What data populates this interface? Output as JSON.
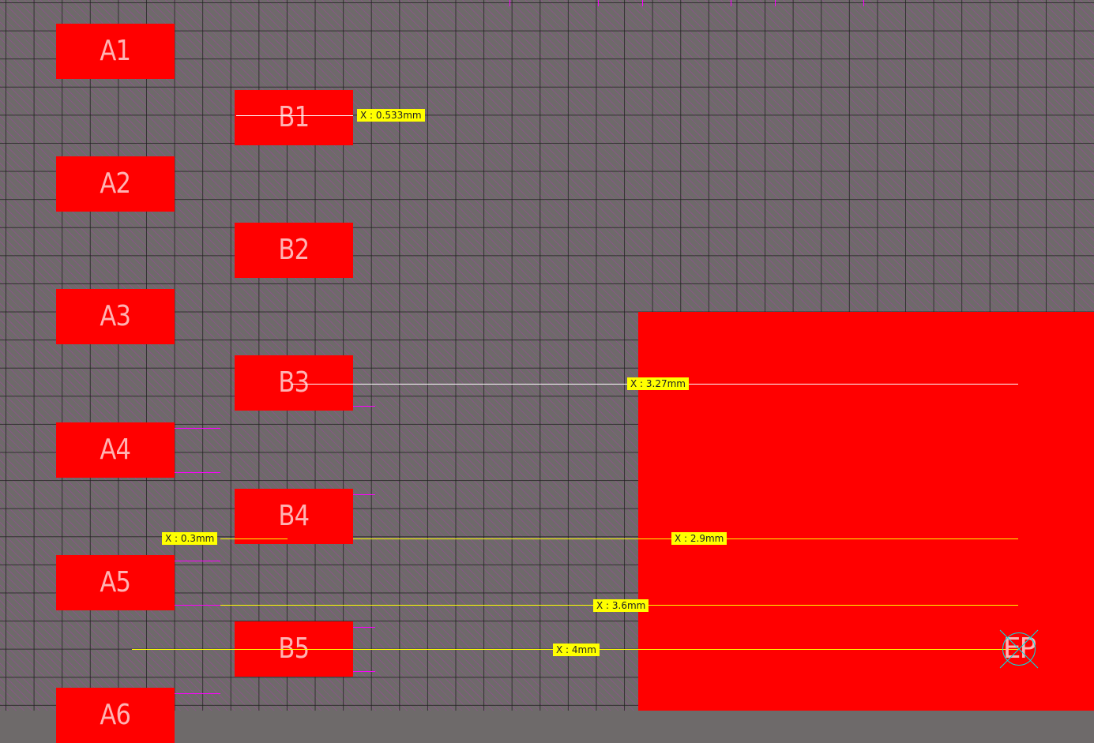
{
  "pads_a": [
    "A1",
    "A2",
    "A3",
    "A4",
    "A5",
    "A6"
  ],
  "pads_b": [
    "B1",
    "B2",
    "B3",
    "B4",
    "B5"
  ],
  "exposed_pad": "EP",
  "measurements": [
    {
      "text": "X : 0.533mm",
      "color": "#ffffff"
    },
    {
      "text": "X : 3.27mm",
      "color": "#ffffff"
    },
    {
      "text": "X : 0.3mm",
      "color": "#ffff00"
    },
    {
      "text": "X : 2.9mm",
      "color": "#ffff00"
    },
    {
      "text": "X : 3.6mm",
      "color": "#ffff00"
    },
    {
      "text": "X : 4mm",
      "color": "#ffff00"
    }
  ],
  "colors": {
    "pad": "#ff0000",
    "background": "#6e6a6a",
    "label": "#ffff00",
    "outline": "#ff00ff",
    "ep_marker": "#00e5e5"
  }
}
